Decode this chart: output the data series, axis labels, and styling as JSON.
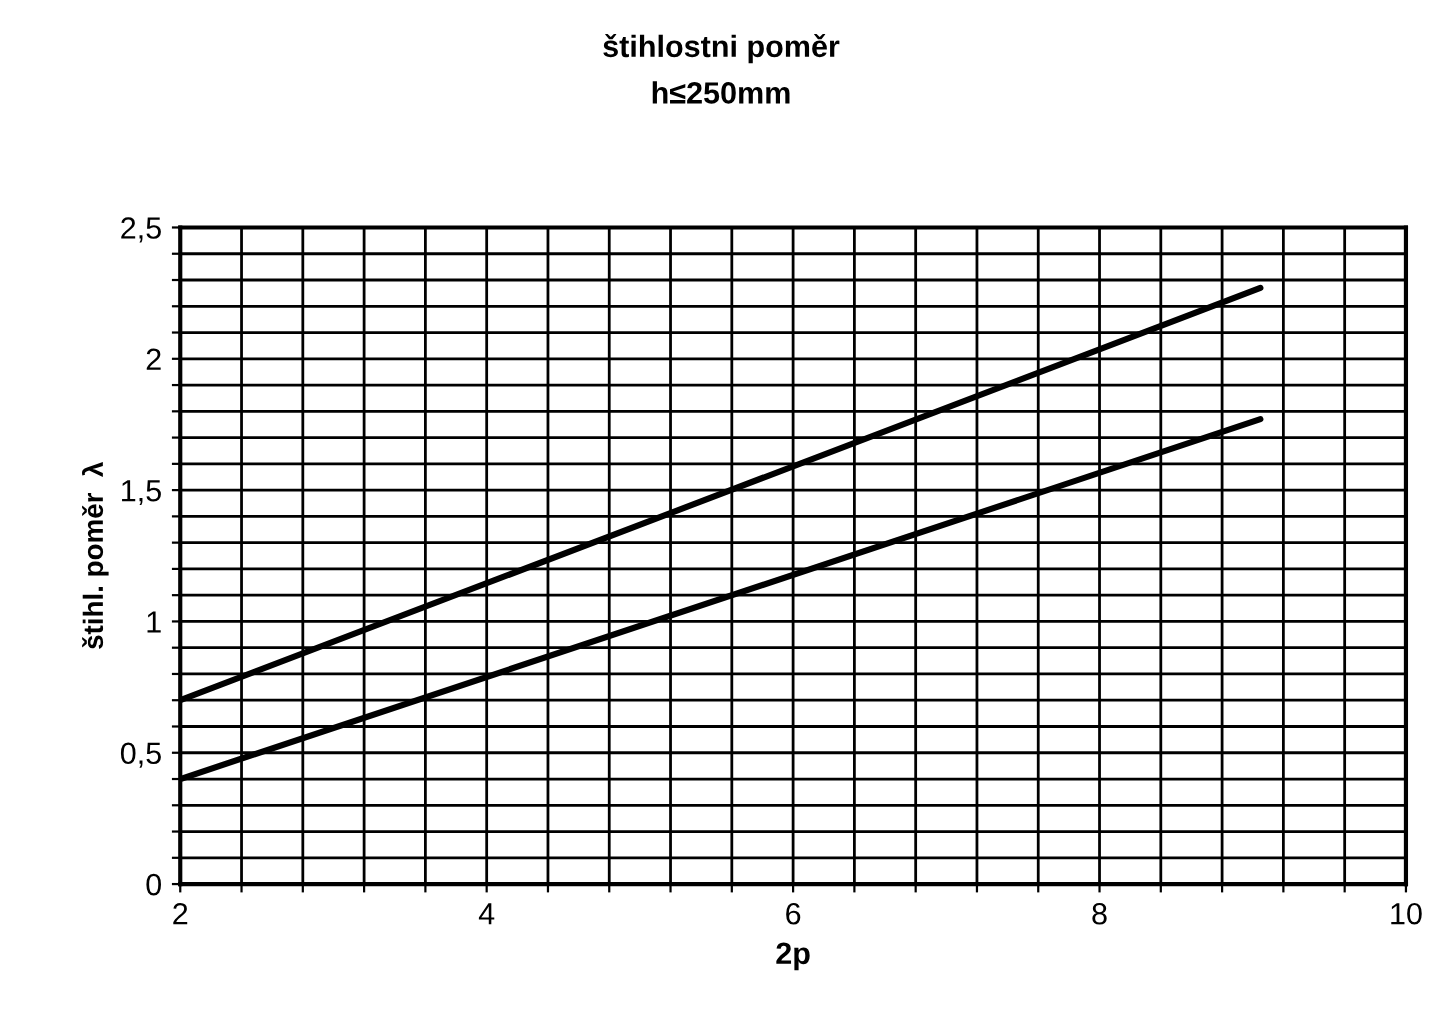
{
  "chart_data": {
    "type": "line",
    "title": "štihlostni poměr",
    "subtitle": "h≤250mm",
    "xlabel": "2p",
    "ylabel": "štihl. poměr  λ",
    "x": [
      2,
      9.05
    ],
    "series": [
      {
        "values": [
          0.7,
          2.27
        ],
        "color": "#000000"
      },
      {
        "values": [
          0.4,
          1.77
        ],
        "color": "#000000"
      }
    ],
    "xlim": [
      2,
      10
    ],
    "xticks": [
      2,
      {
        "value": 2.4,
        "label": null
      },
      {
        "value": 2.8,
        "label": null
      },
      {
        "value": 3.2,
        "label": null
      },
      {
        "value": 3.6,
        "label": null
      },
      4,
      {
        "value": 4.4,
        "label": null
      },
      {
        "value": 4.8,
        "label": null
      },
      {
        "value": 5.2,
        "label": null
      },
      {
        "value": 5.6,
        "label": null
      },
      6,
      {
        "value": 6.4,
        "label": null
      },
      {
        "value": 6.8,
        "label": null
      },
      {
        "value": 7.2,
        "label": null
      },
      {
        "value": 7.6,
        "label": null
      },
      8,
      {
        "value": 8.4,
        "label": null
      },
      {
        "value": 8.8,
        "label": null
      },
      {
        "value": 9.2,
        "label": null
      },
      {
        "value": 9.6,
        "label": null
      },
      10
    ],
    "ylim": [
      0,
      2.5
    ],
    "yticks": [
      0,
      {
        "value": 0.1,
        "label": null
      },
      {
        "value": 0.2,
        "label": null
      },
      {
        "value": 0.3,
        "label": null
      },
      {
        "value": 0.4,
        "label": null
      },
      {
        "value": 0.5,
        "label": "0,5"
      },
      {
        "value": 0.6,
        "label": null
      },
      {
        "value": 0.7,
        "label": null
      },
      {
        "value": 0.8,
        "label": null
      },
      {
        "value": 0.9,
        "label": null
      },
      1,
      {
        "value": 1.1,
        "label": null
      },
      {
        "value": 1.2,
        "label": null
      },
      {
        "value": 1.3,
        "label": null
      },
      {
        "value": 1.4,
        "label": null
      },
      {
        "value": 1.5,
        "label": "1,5"
      },
      {
        "value": 1.6,
        "label": null
      },
      {
        "value": 1.7,
        "label": null
      },
      {
        "value": 1.8,
        "label": null
      },
      {
        "value": 1.9,
        "label": null
      },
      2,
      {
        "value": 2.1,
        "label": null
      },
      {
        "value": 2.2,
        "label": null
      },
      {
        "value": 2.3,
        "label": null
      },
      {
        "value": 2.4,
        "label": null
      },
      {
        "value": 2.5,
        "label": "2,5"
      }
    ],
    "grid": true,
    "marker": "none",
    "line_style": "solid"
  }
}
